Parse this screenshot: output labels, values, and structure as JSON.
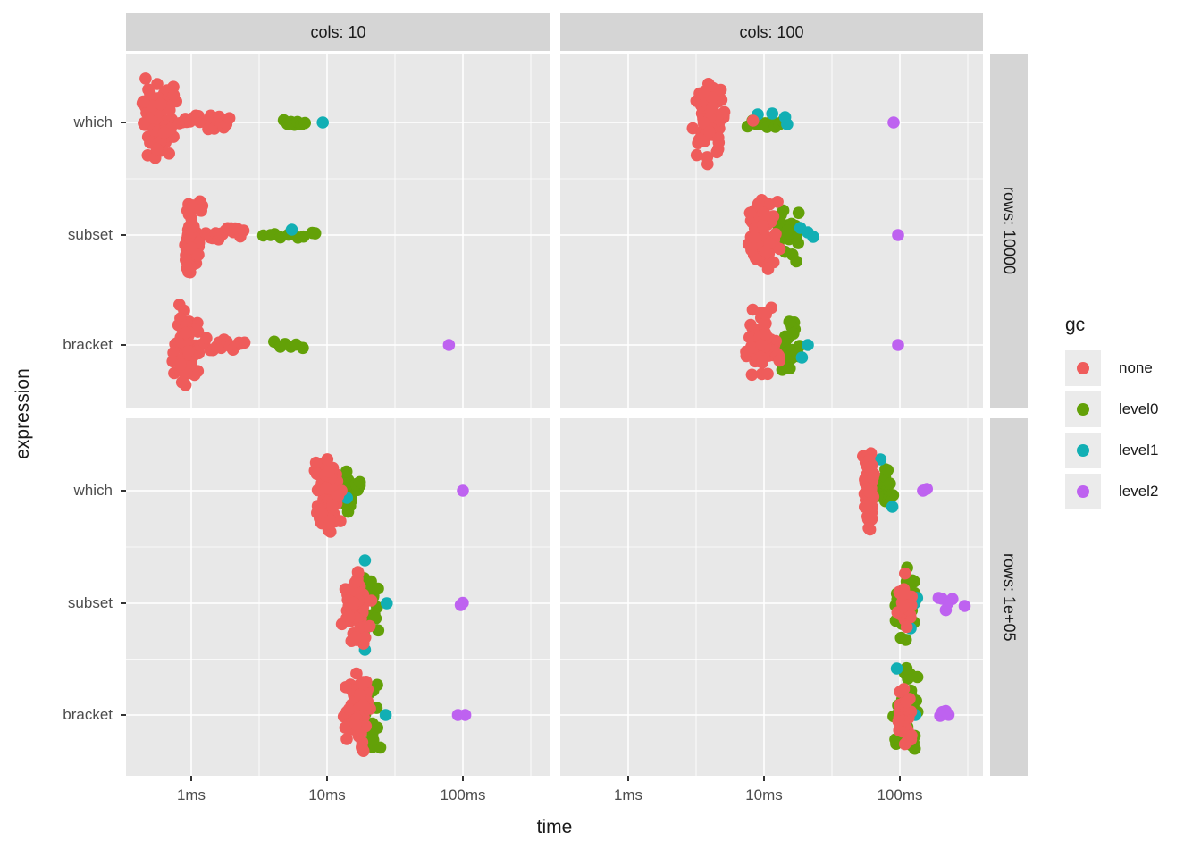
{
  "figure": {
    "background": "#ffffff"
  },
  "axes": {
    "x_title": "time",
    "y_title": "expression",
    "x_tick_labels": [
      "1ms",
      "10ms",
      "100ms"
    ],
    "y_categories": [
      "which",
      "subset",
      "bracket"
    ]
  },
  "facets": {
    "col_labels": [
      "cols: 10",
      "cols: 100"
    ],
    "row_labels": [
      "rows: 10000",
      "rows: 1e+05"
    ]
  },
  "legend": {
    "title": "gc",
    "items": [
      {
        "label": "none",
        "color": "#EF5C5B"
      },
      {
        "label": "level0",
        "color": "#63A108"
      },
      {
        "label": "level1",
        "color": "#12AFB4"
      },
      {
        "label": "level2",
        "color": "#BE62F0"
      }
    ]
  },
  "style": {
    "panel_bg": "#e8e8e8",
    "strip_bg": "#d5d5d5",
    "grid_color": "#ffffff",
    "tick_color": "#333333",
    "axis_text_color": "#4d4d4d"
  },
  "chart_data": {
    "type": "scatter",
    "subtype": "beeswarm-benchmark",
    "title": "",
    "x_axis": {
      "label": "time",
      "scale": "log10",
      "ticks_ms": [
        1,
        10,
        100
      ],
      "tick_labels": [
        "1ms",
        "10ms",
        "100ms"
      ],
      "minor_gridlines_log10": [
        -0.5,
        0.5,
        1.5,
        2.5
      ]
    },
    "y_axis": {
      "label": "expression",
      "categories": [
        "which",
        "subset",
        "bracket"
      ]
    },
    "facets": {
      "cols": [
        "cols: 10",
        "cols: 100"
      ],
      "rows": [
        "rows: 10000",
        "rows: 1e+05"
      ]
    },
    "series": [
      "none",
      "level0",
      "level1",
      "level2"
    ],
    "series_colors": {
      "none": "#EF5C5B",
      "level0": "#63A108",
      "level1": "#12AFB4",
      "level2": "#BE62F0"
    },
    "panels": [
      {
        "key": "tl",
        "col": "cols: 10",
        "row": "rows: 10000",
        "clusters": [
          {
            "expression": "which",
            "gc": "none",
            "shape": "blob",
            "ms": [
              0.42,
              0.8
            ],
            "n": 75,
            "spread": 50
          },
          {
            "expression": "which",
            "gc": "none",
            "shape": "strip",
            "ms": [
              0.8,
              1.95
            ],
            "n": 20,
            "spread": 8
          },
          {
            "expression": "which",
            "gc": "level0",
            "shape": "strip",
            "ms": [
              4.6,
              7.2
            ],
            "n": 7,
            "spread": 3
          },
          {
            "expression": "which",
            "gc": "level1",
            "shape": "points",
            "pts": [
              [
                9.3,
                0
              ]
            ]
          },
          {
            "expression": "subset",
            "gc": "none",
            "shape": "blob",
            "ms": [
              0.85,
              1.25
            ],
            "n": 70,
            "spread": 50
          },
          {
            "expression": "subset",
            "gc": "none",
            "shape": "strip",
            "ms": [
              1.25,
              2.45
            ],
            "n": 16,
            "spread": 8
          },
          {
            "expression": "subset",
            "gc": "level1",
            "shape": "points",
            "pts": [
              [
                5.5,
                -6
              ]
            ]
          },
          {
            "expression": "subset",
            "gc": "level0",
            "shape": "strip",
            "ms": [
              3.2,
              8.8
            ],
            "n": 10,
            "spread": 3
          },
          {
            "expression": "bracket",
            "gc": "none",
            "shape": "blob",
            "ms": [
              0.72,
              1.15
            ],
            "n": 70,
            "spread": 52
          },
          {
            "expression": "bracket",
            "gc": "none",
            "shape": "strip",
            "ms": [
              1.15,
              2.55
            ],
            "n": 16,
            "spread": 8
          },
          {
            "expression": "bracket",
            "gc": "level0",
            "shape": "strip",
            "ms": [
              3.9,
              6.9
            ],
            "n": 6,
            "spread": 4
          },
          {
            "expression": "bracket",
            "gc": "level2",
            "shape": "points",
            "pts": [
              [
                79,
                0
              ]
            ]
          }
        ]
      },
      {
        "key": "tr",
        "col": "cols: 100",
        "row": "rows: 10000",
        "clusters": [
          {
            "expression": "which",
            "gc": "none",
            "shape": "blob",
            "ms": [
              2.9,
              5.3
            ],
            "n": 65,
            "spread": 50
          },
          {
            "expression": "which",
            "gc": "none",
            "shape": "points",
            "pts": [
              [
                8.3,
                -2
              ]
            ]
          },
          {
            "expression": "which",
            "gc": "level0",
            "shape": "strip",
            "ms": [
              7.4,
              14.5
            ],
            "n": 10,
            "spread": 6
          },
          {
            "expression": "which",
            "gc": "level1",
            "shape": "points",
            "pts": [
              [
                9.0,
                -9
              ],
              [
                11.5,
                -10
              ],
              [
                14.3,
                -6
              ],
              [
                14.8,
                2
              ]
            ]
          },
          {
            "expression": "which",
            "gc": "level2",
            "shape": "points",
            "pts": [
              [
                90,
                0
              ]
            ]
          },
          {
            "expression": "subset",
            "gc": "none",
            "shape": "blob",
            "ms": [
              6.9,
              13.3
            ],
            "n": 65,
            "spread": 50
          },
          {
            "expression": "subset",
            "gc": "level0",
            "shape": "blob",
            "ms": [
              12.0,
              18.5
            ],
            "n": 24,
            "spread": 34
          },
          {
            "expression": "subset",
            "gc": "level1",
            "shape": "points",
            "pts": [
              [
                18.5,
                -8
              ],
              [
                21,
                -3
              ],
              [
                23,
                2
              ]
            ]
          },
          {
            "expression": "subset",
            "gc": "level2",
            "shape": "points",
            "pts": [
              [
                97,
                0
              ]
            ]
          },
          {
            "expression": "bracket",
            "gc": "none",
            "shape": "blob",
            "ms": [
              6.9,
              13.8
            ],
            "n": 65,
            "spread": 48
          },
          {
            "expression": "bracket",
            "gc": "level0",
            "shape": "blob",
            "ms": [
              12.0,
              19.5
            ],
            "n": 24,
            "spread": 32
          },
          {
            "expression": "bracket",
            "gc": "level1",
            "shape": "points",
            "pts": [
              [
                19,
                14
              ],
              [
                21,
                0
              ]
            ]
          },
          {
            "expression": "bracket",
            "gc": "level2",
            "shape": "points",
            "pts": [
              [
                97,
                0
              ]
            ]
          }
        ]
      },
      {
        "key": "bl",
        "col": "cols: 10",
        "row": "rows: 1e+05",
        "clusters": [
          {
            "expression": "which",
            "gc": "none",
            "shape": "blob",
            "ms": [
              8.0,
              13.0
            ],
            "n": 60,
            "spread": 50
          },
          {
            "expression": "which",
            "gc": "level0",
            "shape": "blob",
            "ms": [
              11.0,
              19.0
            ],
            "n": 20,
            "spread": 30
          },
          {
            "expression": "which",
            "gc": "level1",
            "shape": "points",
            "pts": [
              [
                14,
                8
              ]
            ]
          },
          {
            "expression": "which",
            "gc": "level2",
            "shape": "points",
            "pts": [
              [
                100,
                0
              ]
            ]
          },
          {
            "expression": "subset",
            "gc": "none",
            "shape": "blob",
            "ms": [
              12.8,
              22.0
            ],
            "n": 60,
            "spread": 50
          },
          {
            "expression": "subset",
            "gc": "level0",
            "shape": "blob",
            "ms": [
              16.5,
              25.5
            ],
            "n": 20,
            "spread": 42
          },
          {
            "expression": "subset",
            "gc": "level1",
            "shape": "points",
            "pts": [
              [
                19,
                -48
              ],
              [
                27.5,
                0
              ],
              [
                19,
                52
              ]
            ]
          },
          {
            "expression": "subset",
            "gc": "level2",
            "shape": "strip",
            "ms": [
              95,
              102
            ],
            "n": 2,
            "spread": 2
          },
          {
            "expression": "bracket",
            "gc": "none",
            "shape": "blob",
            "ms": [
              12.8,
              21.0
            ],
            "n": 60,
            "spread": 52
          },
          {
            "expression": "bracket",
            "gc": "level0",
            "shape": "blob",
            "ms": [
              15.5,
              26.0
            ],
            "n": 20,
            "spread": 48
          },
          {
            "expression": "bracket",
            "gc": "level1",
            "shape": "points",
            "pts": [
              [
                27,
                0
              ]
            ]
          },
          {
            "expression": "bracket",
            "gc": "level2",
            "shape": "points",
            "pts": [
              [
                92,
                0
              ],
              [
                104,
                0
              ]
            ]
          }
        ]
      },
      {
        "key": "br",
        "col": "cols: 100",
        "row": "rows: 1e+05",
        "clusters": [
          {
            "expression": "which",
            "gc": "none",
            "shape": "blob",
            "ms": [
              53,
              67
            ],
            "n": 50,
            "spread": 52
          },
          {
            "expression": "which",
            "gc": "level0",
            "shape": "blob",
            "ms": [
              62,
              94
            ],
            "n": 18,
            "spread": 27
          },
          {
            "expression": "which",
            "gc": "level1",
            "shape": "points",
            "pts": [
              [
                72,
                -35
              ],
              [
                88,
                18
              ]
            ]
          },
          {
            "expression": "which",
            "gc": "level2",
            "shape": "points",
            "pts": [
              [
                148,
                0
              ],
              [
                158,
                -2
              ]
            ]
          },
          {
            "expression": "subset",
            "gc": "level0",
            "shape": "blob",
            "ms": [
              88,
              136
            ],
            "n": 40,
            "spread": 52
          },
          {
            "expression": "subset",
            "gc": "none",
            "shape": "blob",
            "ms": [
              93,
              126
            ],
            "n": 30,
            "spread": 36
          },
          {
            "expression": "subset",
            "gc": "level1",
            "shape": "points",
            "pts": [
              [
                128,
                0
              ],
              [
                134,
                -6
              ],
              [
                120,
                28
              ]
            ]
          },
          {
            "expression": "subset",
            "gc": "level2",
            "shape": "strip",
            "ms": [
              188,
              248
            ],
            "n": 5,
            "spread": 8
          },
          {
            "expression": "subset",
            "gc": "level2",
            "shape": "points",
            "pts": [
              [
                300,
                3
              ]
            ]
          },
          {
            "expression": "bracket",
            "gc": "level0",
            "shape": "blob",
            "ms": [
              88,
              138
            ],
            "n": 40,
            "spread": 55
          },
          {
            "expression": "bracket",
            "gc": "none",
            "shape": "blob",
            "ms": [
              93,
              126
            ],
            "n": 30,
            "spread": 38
          },
          {
            "expression": "bracket",
            "gc": "level1",
            "shape": "points",
            "pts": [
              [
                130,
                0
              ],
              [
                95,
                -52
              ]
            ]
          },
          {
            "expression": "bracket",
            "gc": "level2",
            "shape": "strip",
            "ms": [
              190,
              238
            ],
            "n": 4,
            "spread": 6
          }
        ]
      }
    ]
  }
}
